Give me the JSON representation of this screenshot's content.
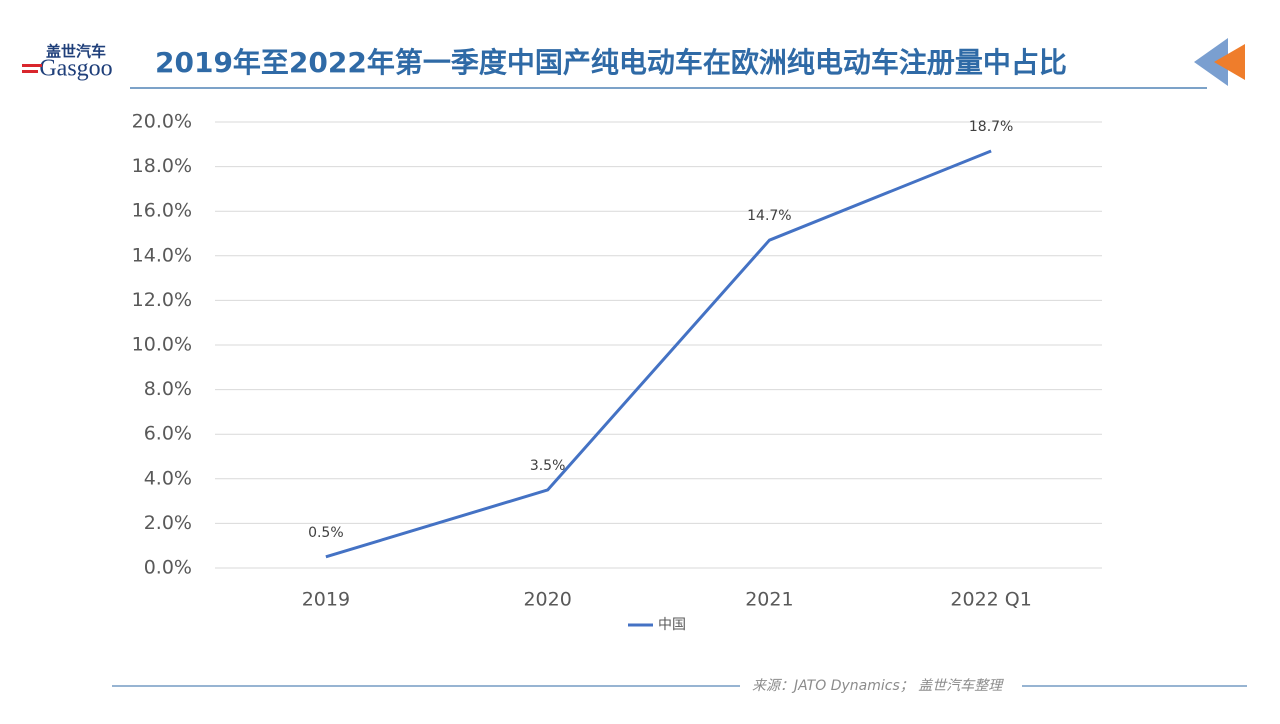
{
  "logo": {
    "cn": "盖世汽车",
    "en": "Gasgoo"
  },
  "chart_data": {
    "type": "line",
    "title": "2019年至2022年第一季度中国产纯电动车在欧洲纯电动车注册量中占比",
    "categories": [
      "2019",
      "2020",
      "2021",
      "2022 Q1"
    ],
    "series": [
      {
        "name": "中国",
        "color": "#4472c4",
        "values": [
          0.5,
          3.5,
          14.7,
          18.7
        ],
        "value_labels": [
          "0.5%",
          "3.5%",
          "14.7%",
          "18.7%"
        ]
      }
    ],
    "ylim": [
      0,
      20
    ],
    "yticks": [
      {
        "value": 0,
        "label": "0.0%"
      },
      {
        "value": 2,
        "label": "2.0%"
      },
      {
        "value": 4,
        "label": "4.0%"
      },
      {
        "value": 6,
        "label": "6.0%"
      },
      {
        "value": 8,
        "label": "8.0%"
      },
      {
        "value": 10,
        "label": "10.0%"
      },
      {
        "value": 12,
        "label": "12.0%"
      },
      {
        "value": 14,
        "label": "14.0%"
      },
      {
        "value": 16,
        "label": "16.0%"
      },
      {
        "value": 18,
        "label": "18.0%"
      },
      {
        "value": 20,
        "label": "20.0%"
      }
    ],
    "grid": true,
    "legend": "bottom",
    "source": "来源：JATO Dynamics； 盖世汽车整理"
  }
}
